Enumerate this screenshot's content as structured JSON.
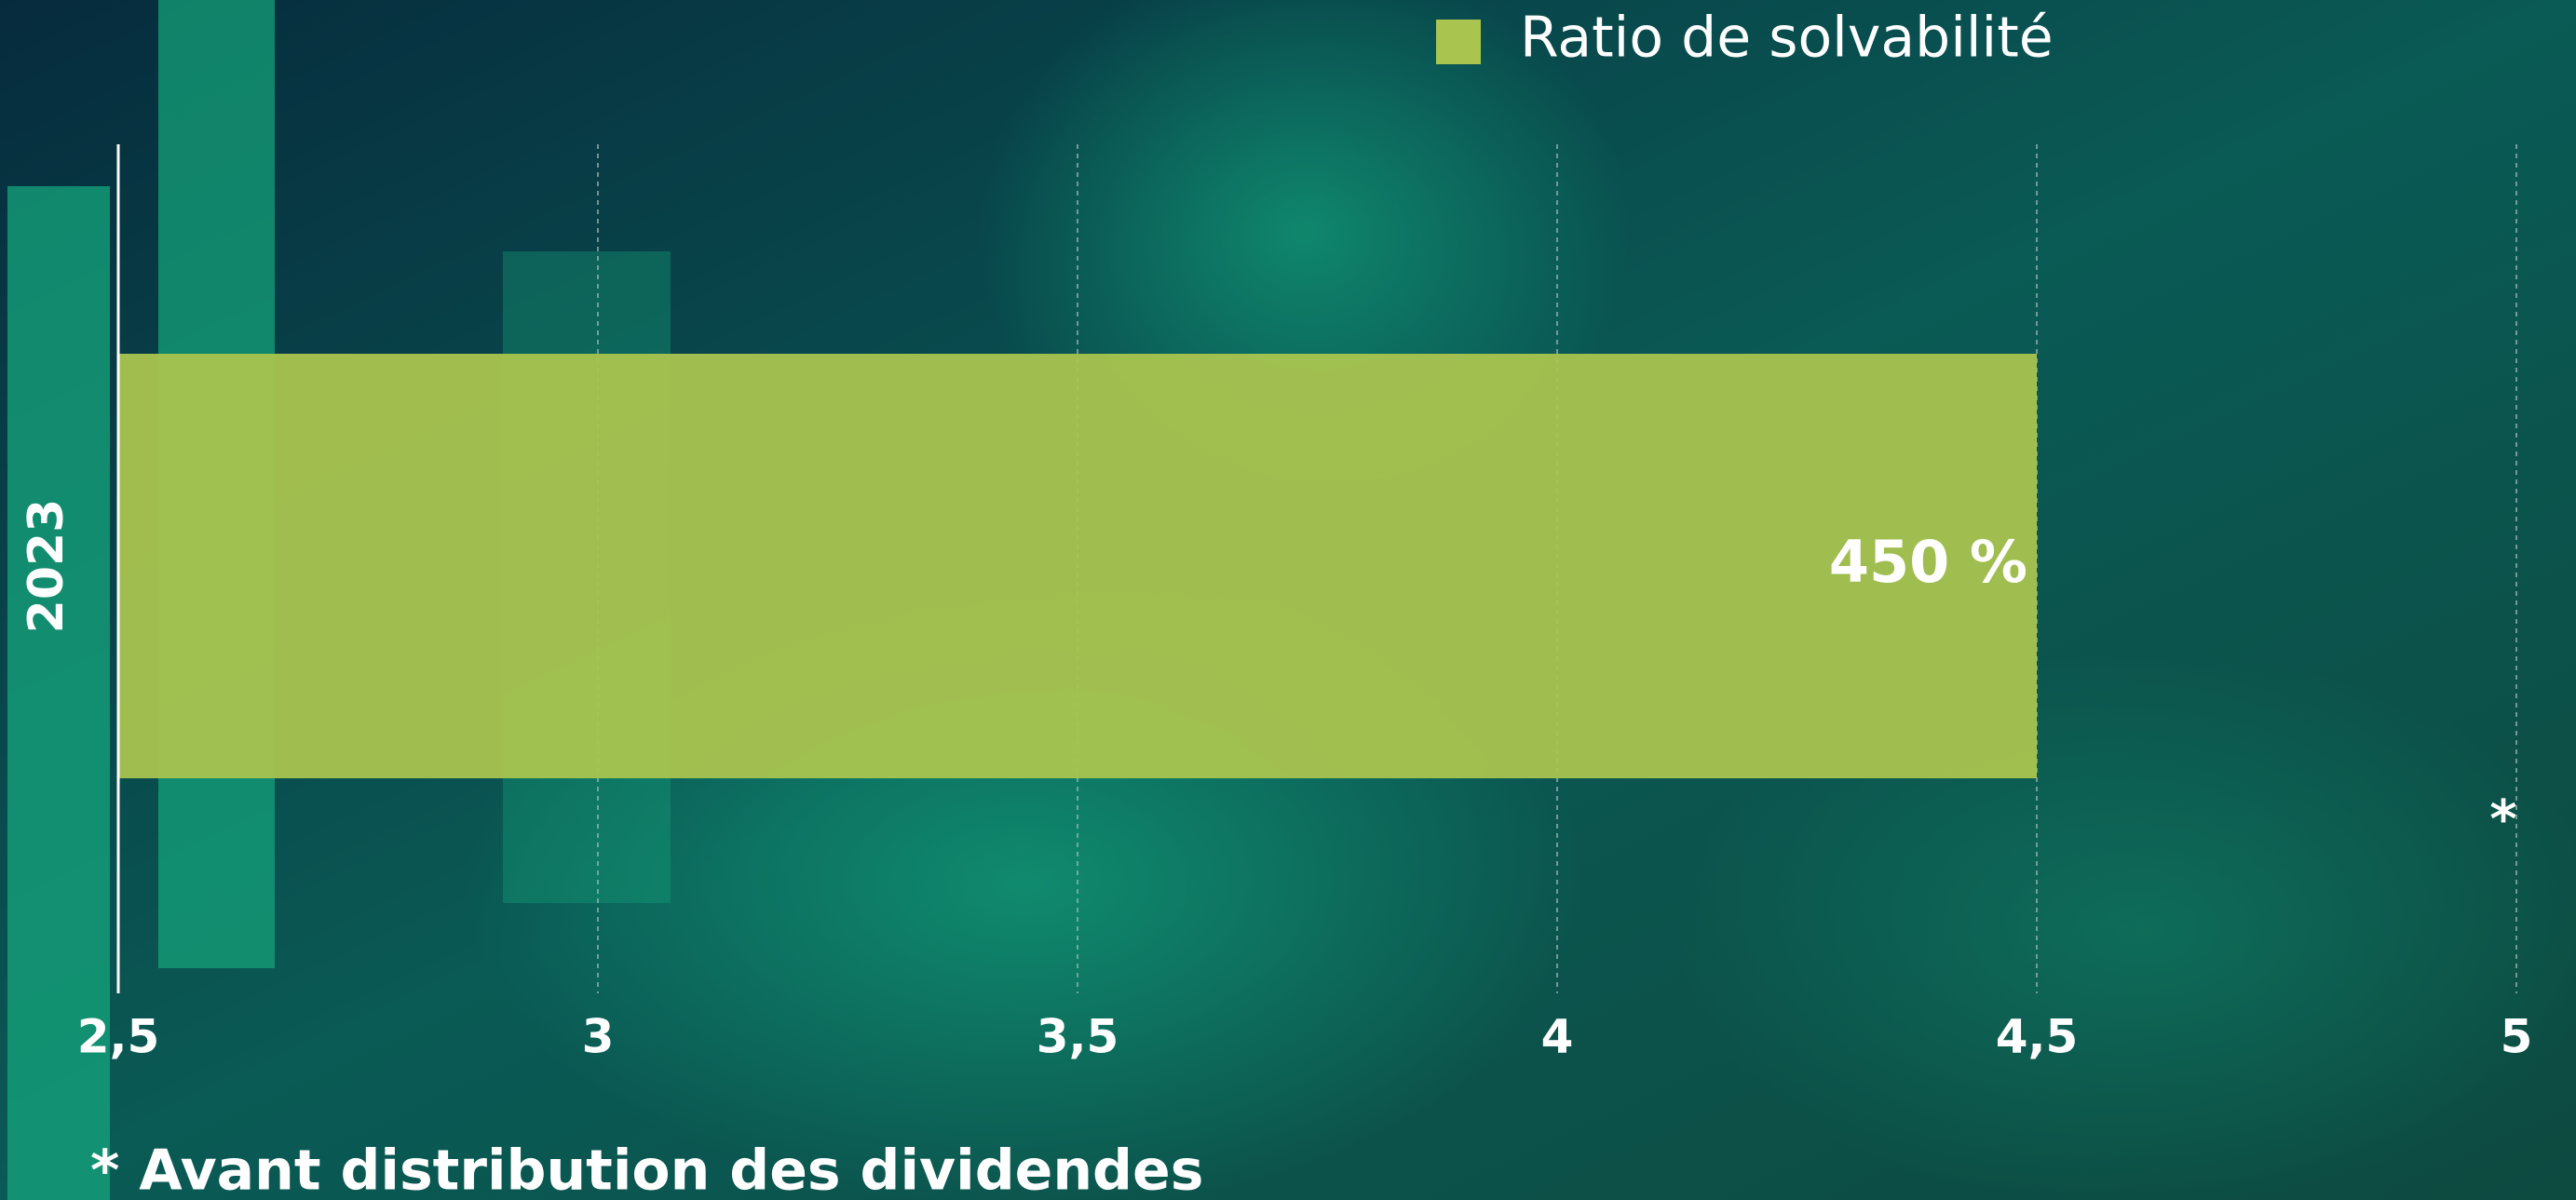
{
  "chart_data": {
    "type": "bar",
    "orientation": "horizontal",
    "legend": "Ratio de solvabilité",
    "categories": [
      "2023"
    ],
    "values": [
      4.5
    ],
    "value_labels": [
      "450 %"
    ],
    "color": "#a9c44f",
    "xlim": [
      2.5,
      5
    ],
    "xticks": [
      {
        "value": 2.5,
        "label": "2,5"
      },
      3,
      {
        "value": 3.5,
        "label": "3,5"
      },
      4,
      {
        "value": 4.5,
        "label": "4,5"
      },
      5
    ],
    "grid": true,
    "annotation": "*",
    "footnote": "* Avant distribution des dividendes"
  }
}
